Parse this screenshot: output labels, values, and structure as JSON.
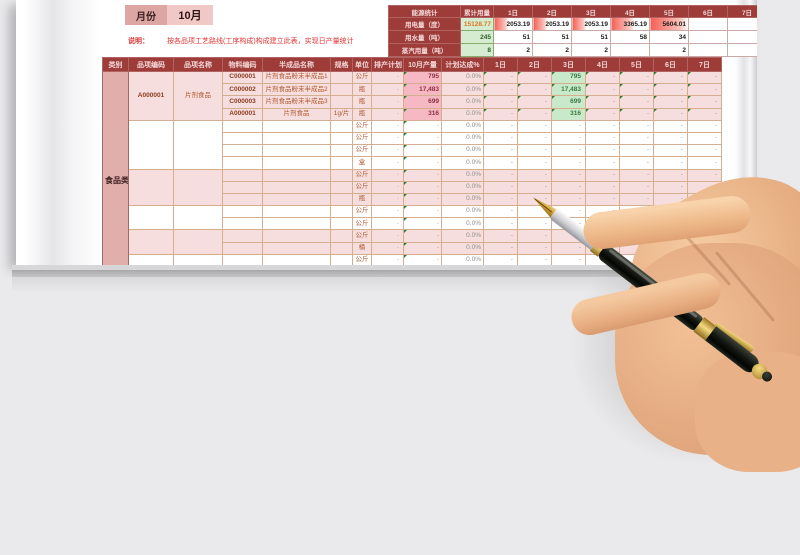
{
  "page": {
    "month_label": "月份",
    "month_value": "10月",
    "note_label": "说明：",
    "note_text": "按各品项工艺路线(工序构成)构成建立此表，实现日产量统计"
  },
  "energy": {
    "title": "能源统计",
    "total_label": "累计用量",
    "day_headers": [
      "1日",
      "2日",
      "3日",
      "4日",
      "5日",
      "6日",
      "7日"
    ],
    "bars": [
      36,
      36,
      36,
      60,
      100,
      0,
      0
    ],
    "rows": [
      {
        "label": "用电量（度）",
        "total": "15128.77",
        "days": [
          "2053.19",
          "2053.19",
          "2053.19",
          "3365.19",
          "5604.01",
          "",
          ""
        ]
      },
      {
        "label": "用水量（吨）",
        "total": "245",
        "days": [
          "51",
          "51",
          "51",
          "58",
          "34",
          "",
          ""
        ]
      },
      {
        "label": "蒸汽用量（吨）",
        "total": "8",
        "days": [
          "2",
          "2",
          "2",
          "",
          "2",
          "",
          ""
        ]
      }
    ]
  },
  "table": {
    "category_header": "类别",
    "headers": [
      "品项编码",
      "品项名称",
      "物料编码",
      "半成品名称",
      "规格",
      "单位",
      "排产计划",
      "10月产量",
      "计划达成%"
    ],
    "day_headers": [
      "1日",
      "2日",
      "3日",
      "4日",
      "5日",
      "6日",
      "7日"
    ],
    "category": "食品类",
    "groups": [
      {
        "item_code": "A000001",
        "item_name": "片剂食品",
        "tone": "rose",
        "rows": [
          {
            "material_code": "C000001",
            "semi_name": "片剂食品粉末半成品1",
            "spec": "",
            "unit": "公斤",
            "plan": "-",
            "output": "795",
            "achieve": "0.0%",
            "days": [
              "-",
              "-",
              "795",
              "-",
              "-",
              "-",
              "-"
            ],
            "hl": 2
          },
          {
            "material_code": "C000002",
            "semi_name": "片剂食品粉末半成品2",
            "spec": "",
            "unit": "瓶",
            "plan": "-",
            "output": "17,483",
            "achieve": "0.0%",
            "days": [
              "-",
              "-",
              "17,483",
              "-",
              "-",
              "-",
              "-"
            ],
            "hl": 2
          },
          {
            "material_code": "C000003",
            "semi_name": "片剂食品粉末半成品3",
            "spec": "",
            "unit": "瓶",
            "plan": "-",
            "output": "699",
            "achieve": "0.0%",
            "days": [
              "-",
              "-",
              "699",
              "-",
              "-",
              "-",
              "-"
            ],
            "hl": 2
          },
          {
            "material_code": "A000001",
            "semi_name": "片剂食品",
            "spec": "1g/片",
            "unit": "瓶",
            "plan": "-",
            "output": "316",
            "achieve": "0.0%",
            "days": [
              "-",
              "-",
              "316",
              "-",
              "-",
              "-",
              "-"
            ],
            "hl": 2
          }
        ]
      },
      {
        "item_code": "",
        "item_name": "",
        "tone": "white",
        "rows": [
          {
            "material_code": "",
            "semi_name": "",
            "spec": "",
            "unit": "公斤",
            "plan": "-",
            "output": "-",
            "achieve": "0.0%",
            "days": [
              "-",
              "-",
              "-",
              "-",
              "-",
              "-",
              "-"
            ],
            "hl": null
          },
          {
            "material_code": "",
            "semi_name": "",
            "spec": "",
            "unit": "公斤",
            "plan": "-",
            "output": "-",
            "achieve": "0.0%",
            "days": [
              "-",
              "-",
              "-",
              "-",
              "-",
              "-",
              "-"
            ],
            "hl": null
          },
          {
            "material_code": "",
            "semi_name": "",
            "spec": "",
            "unit": "公斤",
            "plan": "-",
            "output": "-",
            "achieve": "0.0%",
            "days": [
              "-",
              "-",
              "-",
              "-",
              "-",
              "-",
              "-"
            ],
            "hl": null
          },
          {
            "material_code": "",
            "semi_name": "",
            "spec": "",
            "unit": "盒",
            "plan": "-",
            "output": "-",
            "achieve": "0.0%",
            "days": [
              "-",
              "-",
              "-",
              "-",
              "-",
              "-",
              "-"
            ],
            "hl": null
          }
        ]
      },
      {
        "item_code": "",
        "item_name": "",
        "tone": "rose",
        "rows": [
          {
            "material_code": "",
            "semi_name": "",
            "spec": "",
            "unit": "公斤",
            "plan": "-",
            "output": "-",
            "achieve": "0.0%",
            "days": [
              "-",
              "-",
              "-",
              "-",
              "-",
              "-",
              "-"
            ],
            "hl": null
          },
          {
            "material_code": "",
            "semi_name": "",
            "spec": "",
            "unit": "公斤",
            "plan": "-",
            "output": "-",
            "achieve": "0.0%",
            "days": [
              "-",
              "-",
              "-",
              "-",
              "-",
              "-",
              "-"
            ],
            "hl": null
          },
          {
            "material_code": "",
            "semi_name": "",
            "spec": "",
            "unit": "瓶",
            "plan": "-",
            "output": "-",
            "achieve": "0.0%",
            "days": [
              "-",
              "-",
              "-",
              "-",
              "-",
              "-",
              "-"
            ],
            "hl": null
          }
        ]
      },
      {
        "item_code": "",
        "item_name": "",
        "tone": "white",
        "rows": [
          {
            "material_code": "",
            "semi_name": "",
            "spec": "",
            "unit": "公斤",
            "plan": "-",
            "output": "-",
            "achieve": "0.0%",
            "days": [
              "-",
              "-",
              "-",
              "-",
              "-",
              "-",
              "-"
            ],
            "hl": null
          },
          {
            "material_code": "",
            "semi_name": "",
            "spec": "",
            "unit": "公斤",
            "plan": "-",
            "output": "-",
            "achieve": "0.0%",
            "days": [
              "-",
              "-",
              "-",
              "-",
              "-",
              "-",
              "-"
            ],
            "hl": null
          }
        ]
      },
      {
        "item_code": "",
        "item_name": "",
        "tone": "rose",
        "rows": [
          {
            "material_code": "",
            "semi_name": "",
            "spec": "",
            "unit": "公斤",
            "plan": "-",
            "output": "-",
            "achieve": "0.0%",
            "days": [
              "-",
              "-",
              "-",
              "-",
              "-",
              "-",
              "-"
            ],
            "hl": null
          },
          {
            "material_code": "",
            "semi_name": "",
            "spec": "",
            "unit": "桶",
            "plan": "-",
            "output": "-",
            "achieve": "0.0%",
            "days": [
              "-",
              "-",
              "-",
              "-",
              "-",
              "-",
              "-"
            ],
            "hl": null
          }
        ]
      },
      {
        "item_code": "",
        "item_name": "",
        "tone": "white",
        "rows": [
          {
            "material_code": "",
            "semi_name": "",
            "spec": "",
            "unit": "公斤",
            "plan": "-",
            "output": "-",
            "achieve": "0.0%",
            "days": [
              "-",
              "-",
              "-",
              "-",
              "-",
              "-",
              "-"
            ],
            "hl": null
          },
          {
            "material_code": "",
            "semi_name": "",
            "spec": "",
            "unit": "盒",
            "plan": "-",
            "output": "-",
            "achieve": "0.0%",
            "days": [
              "-",
              "-",
              "-",
              "-",
              "-",
              "-",
              "-"
            ],
            "hl": null
          }
        ]
      },
      {
        "item_code": "",
        "item_name": "",
        "tone": "rose",
        "rows": [
          {
            "material_code": "",
            "semi_name": "",
            "spec": "",
            "unit": "公斤",
            "plan": "-",
            "output": "-",
            "achieve": "0.0%",
            "days": [
              "-",
              "-",
              "-",
              "-",
              "-",
              "-",
              "-"
            ],
            "hl": null
          }
        ]
      }
    ]
  },
  "colors": {
    "header_red": "#9d3c39",
    "rose_row": "#f5dedd",
    "output_pink": "#f6b8c2",
    "day_green": "#c9e9cb",
    "total_green": "#d6ecd0",
    "databar_red": "#f45f55",
    "month_dark": "#dca7a3",
    "month_light": "#f0c9c6",
    "note_red": "#e23333",
    "category_bg": "#e2aeac"
  }
}
